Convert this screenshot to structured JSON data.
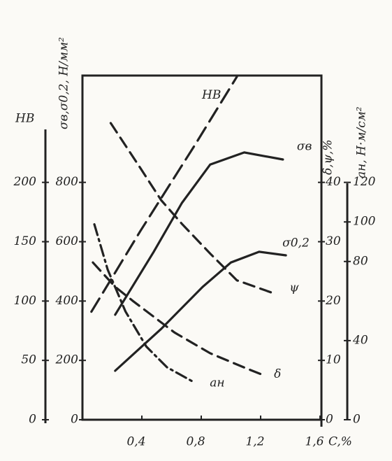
{
  "chart_data": {
    "type": "line",
    "x_label": "C,%",
    "xlim": [
      0,
      1.6
    ],
    "xticks": [
      {
        "value": 0.4,
        "label": "0,4"
      },
      {
        "value": 0.8,
        "label": "0,8"
      },
      {
        "value": 1.2,
        "label": "1,2"
      },
      {
        "value": 1.6,
        "label": "1,6"
      }
    ],
    "y_label": "HB",
    "ylim": [
      0,
      290
    ],
    "yticks": [
      0,
      50,
      100,
      150,
      200
    ],
    "y2_label": "σв,σ0,2, Н/мм²",
    "y2lim": [
      0,
      1160
    ],
    "y2ticks": [
      0,
      200,
      400,
      600,
      800
    ],
    "y3_label": "δ,ψ,%",
    "y3lim": [
      0,
      58
    ],
    "y3ticks": [
      0,
      10,
      20,
      30,
      40
    ],
    "y4_label": "aн, Н·м/см²",
    "y4lim": [
      0,
      174
    ],
    "y4ticks": [
      0,
      40,
      80,
      100,
      120
    ],
    "series": [
      {
        "name": "HB",
        "axis": "y",
        "style": "longdash",
        "color": "#222",
        "x": [
          0.06,
          0.39,
          0.76,
          1.04
        ],
        "values": [
          91,
          159,
          232,
          289
        ]
      },
      {
        "name": "σв",
        "axis": "y2",
        "style": "solid",
        "color": "#222",
        "x": [
          0.22,
          0.48,
          0.67,
          0.86,
          1.09,
          1.35
        ],
        "values": [
          354,
          566,
          731,
          860,
          901,
          877
        ]
      },
      {
        "name": "σ0,2",
        "axis": "y2",
        "style": "solid",
        "color": "#222",
        "x": [
          0.22,
          0.53,
          0.81,
          1.0,
          1.19,
          1.37
        ],
        "values": [
          165,
          306,
          448,
          530,
          566,
          554
        ]
      },
      {
        "name": "ψ",
        "axis": "y3",
        "style": "dash",
        "color": "#222",
        "x": [
          0.19,
          0.39,
          0.53,
          0.67,
          0.86,
          1.04,
          1.3
        ],
        "values": [
          50,
          42.4,
          37,
          33,
          28,
          23.5,
          21.2
        ]
      },
      {
        "name": "δ",
        "axis": "y3",
        "style": "dash",
        "color": "#222",
        "x": [
          0.07,
          0.22,
          0.34,
          0.62,
          0.86,
          1.09,
          1.21
        ],
        "values": [
          26.5,
          22.4,
          20,
          14.7,
          11.2,
          8.8,
          7.6
        ]
      },
      {
        "name": "aн",
        "axis": "y4",
        "style": "dashdot",
        "color": "#222",
        "x": [
          0.08,
          0.17,
          0.29,
          0.43,
          0.57,
          0.74
        ],
        "values": [
          98.8,
          75.9,
          54.7,
          37,
          26.5,
          19.4
        ]
      }
    ]
  }
}
